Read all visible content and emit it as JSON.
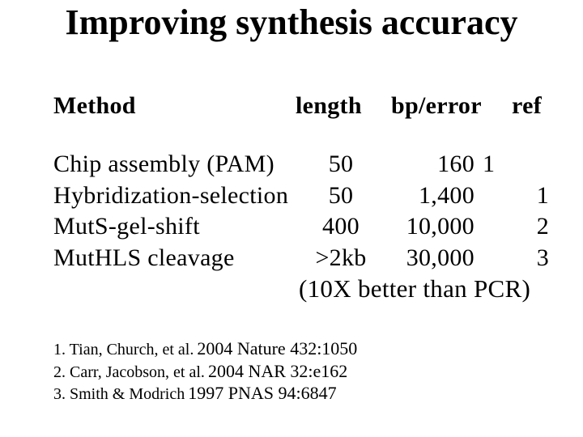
{
  "title": "Improving synthesis accuracy",
  "table": {
    "headers": {
      "method": "Method",
      "length": "length",
      "bp_error": "bp/error",
      "ref": "ref"
    },
    "rows": [
      {
        "method": "Chip assembly (PAM)",
        "length": "50",
        "bp_error": "160",
        "ref": "1"
      },
      {
        "method": "Hybridization-selection",
        "length": "50",
        "bp_error": "1,400",
        "ref": "1"
      },
      {
        "method": "MutS-gel-shift",
        "length": "400",
        "bp_error": "10,000",
        "ref": "2"
      },
      {
        "method": "MutHLS cleavage",
        "length": ">2kb",
        "bp_error": "30,000",
        "ref": "3"
      }
    ],
    "note": "(10X better than PCR)"
  },
  "references": [
    {
      "authors": "1. Tian, Church, et al.",
      "citation": "2004 Nature 432:1050"
    },
    {
      "authors": "2. Carr, Jacobson, et al.",
      "citation": "2004 NAR 32:e162"
    },
    {
      "authors": "3. Smith & Modrich",
      "citation": "1997 PNAS 94:6847"
    }
  ],
  "colors": {
    "background": "#ffffff",
    "text": "#000000"
  }
}
